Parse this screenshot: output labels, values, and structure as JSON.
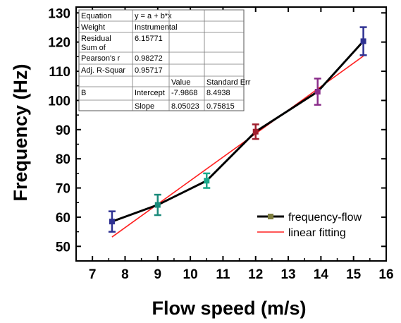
{
  "chart_data": {
    "type": "scatter",
    "xlabel": "Flow speed (m/s)",
    "ylabel": "Frequency (Hz)",
    "xlim": [
      6.5,
      16
    ],
    "ylim": [
      45,
      132
    ],
    "x_ticks": [
      7,
      8,
      9,
      10,
      11,
      12,
      13,
      14,
      15,
      16
    ],
    "y_ticks": [
      50,
      60,
      70,
      80,
      90,
      100,
      110,
      120,
      130
    ],
    "grid": false,
    "legend_position": "bottom-right",
    "series": [
      {
        "name": "frequency-flow",
        "line_color": "#000000",
        "points": [
          {
            "x": 7.6,
            "y": 58.5,
            "err": 3.5,
            "color": "#2e3192"
          },
          {
            "x": 9.0,
            "y": 64.2,
            "err": 3.5,
            "color": "#1a8a7a"
          },
          {
            "x": 10.5,
            "y": 72.5,
            "err": 2.5,
            "color": "#1aa88a"
          },
          {
            "x": 12.0,
            "y": 89.3,
            "err": 2.5,
            "color": "#a01f2d"
          },
          {
            "x": 13.9,
            "y": 103.0,
            "err": 4.5,
            "color": "#8a2d8a"
          },
          {
            "x": 15.3,
            "y": 120.3,
            "err": 4.8,
            "color": "#2e3192"
          }
        ]
      },
      {
        "name": "linear fitting",
        "color": "#ff2020",
        "x": [
          7.6,
          15.3
        ],
        "y": [
          53.2,
          115.2
        ]
      }
    ],
    "stats_table": {
      "rows": [
        [
          "Equation",
          "y = a + b*x",
          "",
          ""
        ],
        [
          "Weight",
          "Instrumental",
          "",
          ""
        ],
        [
          "Residual Sum of",
          "6.15771",
          "",
          ""
        ],
        [
          "Pearson's r",
          "0.98272",
          "",
          ""
        ],
        [
          "Adj. R-Squar",
          "0.95717",
          "",
          ""
        ],
        [
          "",
          "",
          "Value",
          "Standard Err"
        ],
        [
          "B",
          "Intercept",
          "-7.9868",
          "8.4938"
        ],
        [
          "",
          "Slope",
          "8.05023",
          "0.75815"
        ]
      ]
    }
  }
}
